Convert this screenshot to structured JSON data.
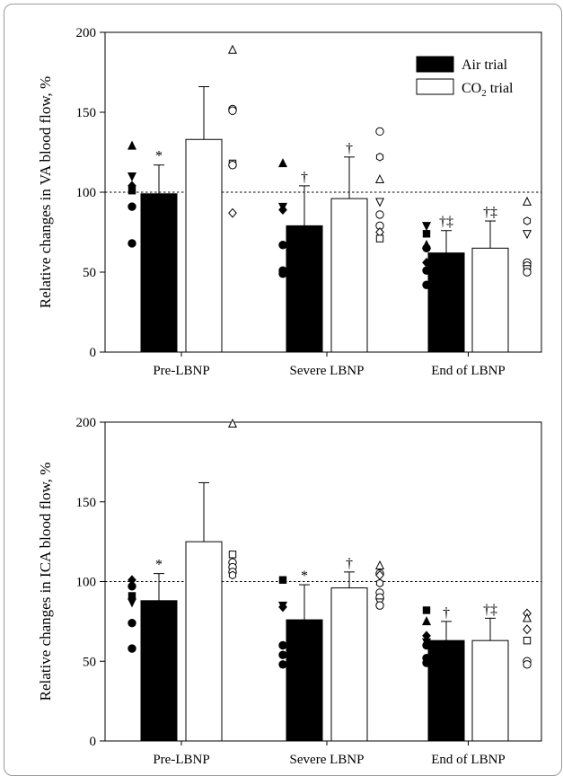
{
  "chart_data": [
    {
      "type": "bar",
      "ylabel": "Relative changes in VA blood flow, %",
      "ylim": [
        0,
        200
      ],
      "yticks": [
        0,
        50,
        100,
        150,
        200
      ],
      "categories": [
        "Pre-LBNP",
        "Severe LBNP",
        "End of LBNP"
      ],
      "reference_line": 100,
      "legend": {
        "position": "top-right",
        "entries": [
          "Air trial",
          "trial"
        ],
        "co2_prefix": "CO",
        "co2_sub": "2"
      },
      "series": [
        {
          "name": "Air trial",
          "fill": "#000000",
          "values": [
            99,
            79,
            62
          ],
          "errors": [
            18,
            25,
            14
          ],
          "annotations": [
            "*",
            "†",
            "†‡"
          ]
        },
        {
          "name": "CO2 trial",
          "fill": "#ffffff",
          "values": [
            133,
            96,
            65
          ],
          "errors": [
            33,
            26,
            17
          ],
          "annotations": [
            "",
            "†",
            "†‡"
          ]
        }
      ],
      "individual_points": {
        "Air trial": [
          [
            [
              129,
              "triangle"
            ],
            [
              110,
              "triangle-down"
            ],
            [
              104,
              "diamond"
            ],
            [
              101,
              "square"
            ],
            [
              91,
              "circle"
            ],
            [
              68,
              "circle"
            ]
          ],
          [
            [
              118,
              "triangle"
            ],
            [
              91,
              "triangle-down"
            ],
            [
              89,
              "diamond"
            ],
            [
              67,
              "circle"
            ],
            [
              51,
              "circle"
            ],
            [
              49,
              "circle"
            ]
          ],
          [
            [
              79,
              "triangle-down"
            ],
            [
              74,
              "square"
            ],
            [
              67,
              "triangle"
            ],
            [
              65,
              "circle"
            ],
            [
              56,
              "diamond"
            ],
            [
              51,
              "circle"
            ],
            [
              42,
              "circle"
            ]
          ]
        ],
        "CO2 trial": [
          [
            [
              189,
              "triangle"
            ],
            [
              152,
              "circle"
            ],
            [
              151,
              "circle"
            ],
            [
              118,
              "square"
            ],
            [
              117,
              "circle"
            ],
            [
              87,
              "diamond"
            ]
          ],
          [
            [
              138,
              "circle"
            ],
            [
              122,
              "hexagon"
            ],
            [
              108,
              "triangle"
            ],
            [
              94,
              "triangle-down"
            ],
            [
              86,
              "circle"
            ],
            [
              79,
              "circle"
            ],
            [
              75,
              "diamond"
            ],
            [
              71,
              "square"
            ]
          ],
          [
            [
              94,
              "triangle"
            ],
            [
              82,
              "hexagon"
            ],
            [
              74,
              "triangle-down"
            ],
            [
              56,
              "circle"
            ],
            [
              54,
              "circle"
            ],
            [
              52,
              "square"
            ],
            [
              50,
              "circle"
            ]
          ]
        ]
      }
    },
    {
      "type": "bar",
      "ylabel": "Relative changes in ICA blood flow, %",
      "ylim": [
        0,
        200
      ],
      "yticks": [
        0,
        50,
        100,
        150,
        200
      ],
      "categories": [
        "Pre-LBNP",
        "Severe LBNP",
        "End of LBNP"
      ],
      "reference_line": 100,
      "series": [
        {
          "name": "Air trial",
          "fill": "#000000",
          "values": [
            88,
            76,
            63
          ],
          "errors": [
            17,
            22,
            12
          ],
          "annotations": [
            "*",
            "*",
            "†"
          ]
        },
        {
          "name": "CO2 trial",
          "fill": "#ffffff",
          "values": [
            125,
            96,
            63
          ],
          "errors": [
            37,
            10,
            14
          ],
          "annotations": [
            "",
            "†",
            "†‡"
          ]
        }
      ],
      "individual_points": {
        "Air trial": [
          [
            [
              101,
              "diamond"
            ],
            [
              97,
              "circle"
            ],
            [
              91,
              "square"
            ],
            [
              87,
              "triangle-down"
            ],
            [
              74,
              "circle"
            ],
            [
              58,
              "circle"
            ]
          ],
          [
            [
              101,
              "square"
            ],
            [
              85,
              "triangle-down"
            ],
            [
              84,
              "diamond"
            ],
            [
              60,
              "circle"
            ],
            [
              54,
              "circle"
            ],
            [
              48,
              "circle"
            ]
          ],
          [
            [
              82,
              "square"
            ],
            [
              75,
              "triangle"
            ],
            [
              66,
              "diamond"
            ],
            [
              62,
              "triangle-down"
            ],
            [
              60,
              "circle"
            ],
            [
              52,
              "circle"
            ],
            [
              49,
              "circle"
            ]
          ]
        ],
        "CO2 trial": [
          [
            [
              199,
              "triangle"
            ],
            [
              117,
              "square"
            ],
            [
              112,
              "circle"
            ],
            [
              109,
              "circle"
            ],
            [
              106,
              "circle"
            ],
            [
              104,
              "hexagon"
            ]
          ],
          [
            [
              110,
              "triangle"
            ],
            [
              105,
              "circle"
            ],
            [
              104,
              "diamond"
            ],
            [
              99,
              "hexagon"
            ],
            [
              93,
              "circle"
            ],
            [
              90,
              "circle"
            ],
            [
              87,
              "triangle-down"
            ],
            [
              85,
              "circle"
            ]
          ],
          [
            [
              80,
              "diamond"
            ],
            [
              77,
              "triangle"
            ],
            [
              70,
              "diamond"
            ],
            [
              63,
              "square"
            ],
            [
              50,
              "circle"
            ],
            [
              48,
              "circle"
            ]
          ]
        ]
      }
    }
  ]
}
